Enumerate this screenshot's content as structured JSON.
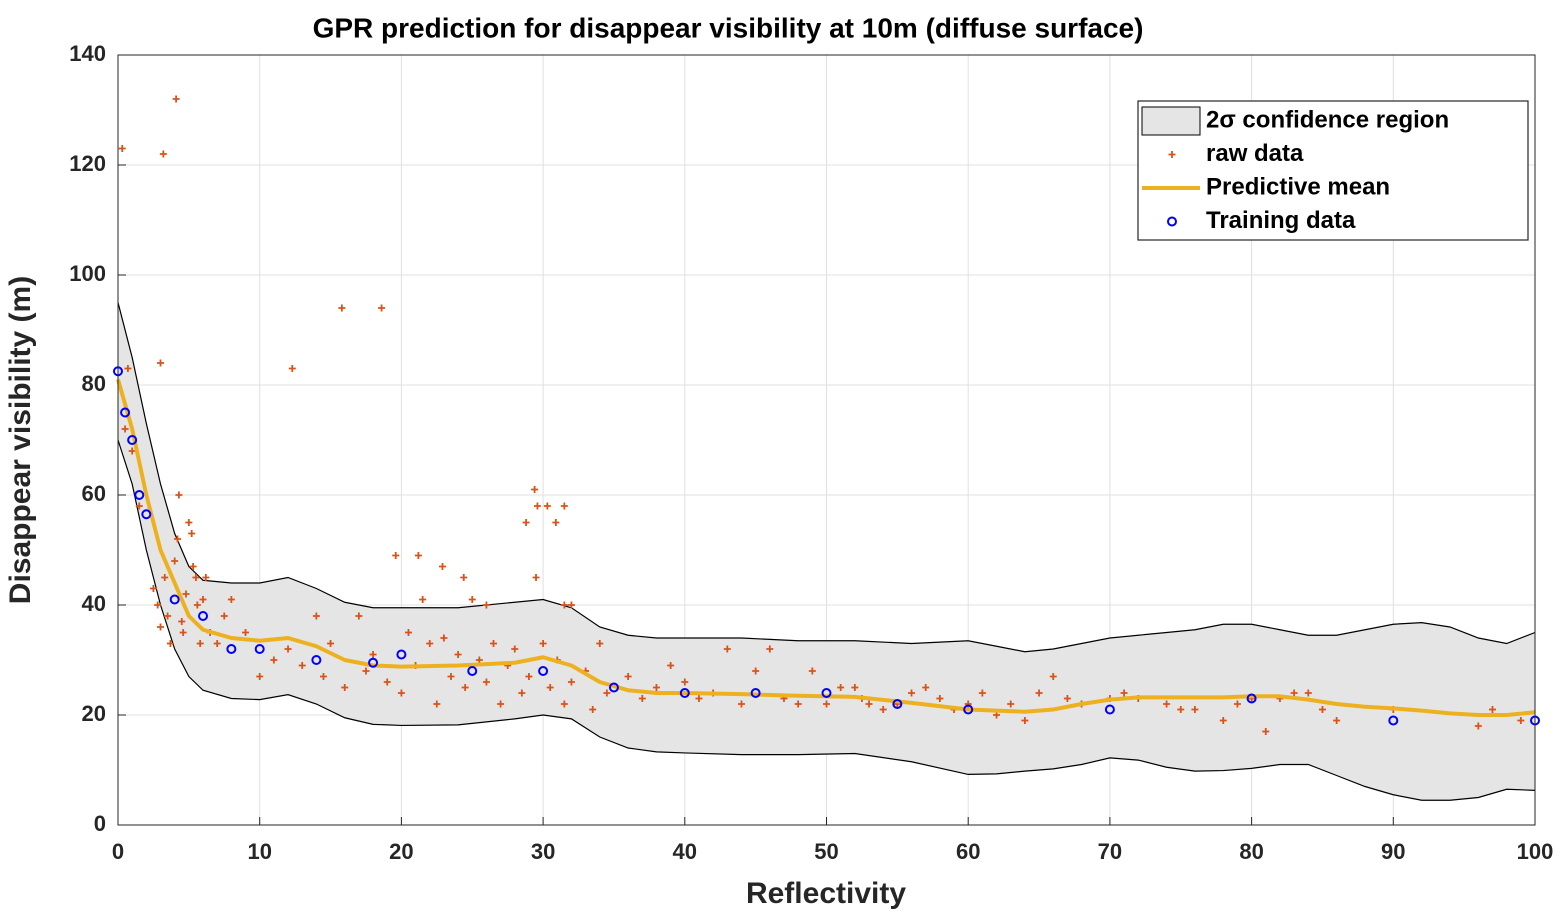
{
  "chart_data": {
    "type": "scatter",
    "title": "GPR prediction for disappear visibility at 10m (diffuse surface)",
    "x_label": "Reflectivity",
    "y_label": "Disappear visibility (m)",
    "xlim": [
      0,
      100
    ],
    "ylim": [
      0,
      140
    ],
    "xticks": [
      0,
      10,
      20,
      30,
      40,
      50,
      60,
      70,
      80,
      90,
      100
    ],
    "yticks": [
      0,
      20,
      40,
      60,
      80,
      100,
      120,
      140
    ],
    "grid": true,
    "legend": "upper right",
    "series": [
      {
        "name": "2σ confidence region",
        "type": "band",
        "color": "#e5e5e5",
        "x": [
          0,
          1,
          2,
          3,
          4,
          5,
          6,
          8,
          10,
          12,
          14,
          16,
          18,
          20,
          24,
          28,
          30,
          32,
          34,
          36,
          38,
          40,
          44,
          48,
          52,
          56,
          60,
          62,
          64,
          66,
          68,
          70,
          72,
          74,
          76,
          78,
          80,
          82,
          84,
          86,
          88,
          90,
          92,
          94,
          96,
          98,
          100
        ],
        "upper": [
          95,
          85,
          73,
          62,
          53,
          47,
          44.5,
          44,
          44,
          45,
          43,
          40.5,
          39.5,
          39.5,
          39.5,
          40.5,
          41,
          39.5,
          36,
          34.5,
          34,
          34,
          34,
          33.5,
          33.5,
          33,
          33.5,
          32.5,
          31.5,
          32,
          33,
          34,
          34.5,
          35,
          35.5,
          36.5,
          36.5,
          35.5,
          34.5,
          34.5,
          35.5,
          36.5,
          36.8,
          36,
          34,
          33,
          35
        ],
        "lower": [
          70,
          62,
          50,
          40,
          32,
          27,
          24.5,
          23,
          22.8,
          23.7,
          22,
          19.5,
          18.3,
          18.1,
          18.2,
          19.3,
          20,
          19.3,
          16,
          14,
          13.3,
          13.1,
          12.8,
          12.8,
          13,
          11.5,
          9.2,
          9.3,
          9.8,
          10.2,
          11,
          12.2,
          11.8,
          10.5,
          9.8,
          9.9,
          10.3,
          11,
          11,
          9,
          7,
          5.5,
          4.5,
          4.5,
          5,
          6.5,
          6.3
        ]
      },
      {
        "name": "raw data",
        "type": "scatter",
        "marker": "plus",
        "color": "#d95319",
        "x": [
          0.3,
          0.7,
          0.5,
          1,
          1.5,
          3.2,
          4.1,
          3,
          4.3,
          15.8,
          18.6,
          12.3,
          29.4,
          29.6,
          30.3,
          31.5,
          29.5,
          28.8,
          30.9,
          19.6,
          21.2,
          22.9,
          24.4,
          25,
          21.5,
          31.5,
          32,
          26,
          2.5,
          2.8,
          3,
          3.3,
          3.5,
          3.7,
          4,
          4.2,
          4.5,
          4.6,
          4.8,
          5,
          5.2,
          5.3,
          5.5,
          5.6,
          5.8,
          6,
          6.2,
          6.5,
          7,
          7.5,
          8,
          9,
          10,
          11,
          12,
          13,
          14,
          14.5,
          15,
          16,
          17,
          17.5,
          18,
          19,
          20,
          20.5,
          21,
          22,
          22.5,
          23,
          23.5,
          24,
          24.5,
          25.5,
          26,
          26.5,
          27,
          27.5,
          28,
          28.5,
          29,
          30,
          30.5,
          31,
          31.5,
          32,
          33,
          33.5,
          34,
          34.5,
          36,
          37,
          38,
          39,
          40,
          41,
          42,
          43,
          44,
          45,
          46,
          47,
          48,
          49,
          50,
          51,
          52,
          52.5,
          53,
          54,
          55,
          56,
          57,
          58,
          59,
          60,
          61,
          62,
          63,
          64,
          65,
          66,
          67,
          68,
          70,
          71,
          72,
          74,
          75,
          76,
          78,
          79,
          80,
          81,
          82,
          83,
          84,
          85,
          86,
          90,
          96,
          97,
          99
        ],
        "values": [
          123,
          83,
          72,
          68,
          58,
          122,
          132,
          84,
          60,
          94,
          94,
          83,
          61,
          58,
          58,
          58,
          45,
          55,
          55,
          49,
          49,
          47,
          45,
          41,
          41,
          40,
          40,
          40,
          43,
          40,
          36,
          45,
          38,
          33,
          48,
          52,
          37,
          35,
          42,
          55,
          53,
          47,
          45,
          40,
          33,
          41,
          45,
          35,
          33,
          38,
          41,
          35,
          27,
          30,
          32,
          29,
          38,
          27,
          33,
          25,
          38,
          28,
          31,
          26,
          24,
          35,
          29,
          33,
          22,
          34,
          27,
          31,
          25,
          30,
          26,
          33,
          22,
          29,
          32,
          24,
          27,
          33,
          25,
          30,
          22,
          26,
          28,
          21,
          33,
          24,
          27,
          23,
          25,
          29,
          26,
          23,
          24,
          32,
          22,
          28,
          32,
          23,
          22,
          28,
          22,
          25,
          25,
          23,
          22,
          21,
          22,
          24,
          25,
          23,
          21,
          22,
          24,
          20,
          22,
          19,
          24,
          27,
          23,
          22,
          23,
          24,
          23,
          22,
          21,
          21,
          19,
          22,
          23,
          17,
          23,
          24,
          24,
          21,
          19,
          21,
          18,
          21,
          19
        ]
      },
      {
        "name": "Predictive mean",
        "type": "line",
        "color": "#edb120",
        "x": [
          0,
          1,
          2,
          3,
          4,
          5,
          6,
          8,
          10,
          12,
          14,
          16,
          18,
          20,
          24,
          28,
          30,
          32,
          34,
          36,
          38,
          40,
          44,
          48,
          52,
          56,
          60,
          62,
          64,
          66,
          68,
          70,
          72,
          74,
          76,
          78,
          80,
          82,
          84,
          86,
          88,
          90,
          92,
          94,
          96,
          98,
          100
        ],
        "values": [
          81,
          72,
          60,
          50,
          44,
          38,
          35.5,
          34,
          33.5,
          34,
          32.5,
          30,
          29,
          28.8,
          29,
          29.5,
          30.5,
          29,
          26,
          24.5,
          24,
          24,
          23.8,
          23.5,
          23.3,
          22.2,
          21,
          20.8,
          20.6,
          21,
          22,
          22.8,
          23.2,
          23.2,
          23.2,
          23.2,
          23.4,
          23.4,
          22.8,
          22,
          21.5,
          21.2,
          20.8,
          20.3,
          20,
          20,
          20.5
        ]
      },
      {
        "name": "Training data",
        "type": "scatter",
        "marker": "circle",
        "color": "#0000ff",
        "x": [
          0,
          0.5,
          1,
          1.5,
          2,
          4,
          6,
          8,
          10,
          14,
          18,
          20,
          25,
          30,
          35,
          40,
          45,
          50,
          55,
          60,
          70,
          80,
          90,
          100
        ],
        "values": [
          82.5,
          75,
          70,
          60,
          56.5,
          41,
          38,
          32,
          32,
          30,
          29.5,
          31,
          28,
          28,
          25,
          24,
          24,
          24,
          22,
          21,
          21,
          23,
          19,
          19
        ]
      }
    ]
  }
}
